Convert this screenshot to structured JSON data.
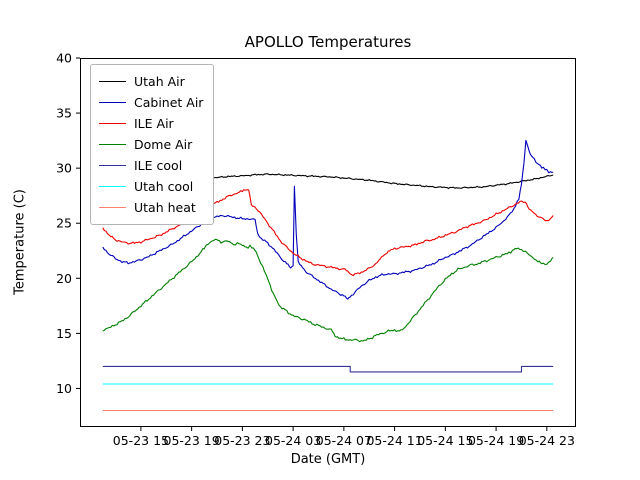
{
  "figure": {
    "title": "APOLLO Temperatures",
    "xlabel": "Date (GMT)",
    "ylabel": "Temperature (C)"
  },
  "chart_data": {
    "type": "line",
    "title": "APOLLO Temperatures",
    "xlabel": "Date (GMT)",
    "ylabel": "Temperature (C)",
    "grid": false,
    "legend_position": "upper-left",
    "x_unit": "hours since 05-23 12:00 GMT",
    "xlim": [
      -1.8,
      37.3
    ],
    "ylim": [
      6.5,
      40
    ],
    "yticks": [
      10,
      15,
      20,
      25,
      30,
      35,
      40
    ],
    "xticks": [
      {
        "value": 3,
        "label": "05-23 15"
      },
      {
        "value": 7,
        "label": "05-23 19"
      },
      {
        "value": 11,
        "label": "05-23 23"
      },
      {
        "value": 15,
        "label": "05-24 03"
      },
      {
        "value": 19,
        "label": "05-24 07"
      },
      {
        "value": 23,
        "label": "05-24 11"
      },
      {
        "value": 27,
        "label": "05-24 15"
      },
      {
        "value": 31,
        "label": "05-24 19"
      },
      {
        "value": 35,
        "label": "05-24 23"
      }
    ],
    "series": [
      {
        "name": "Utah Air",
        "color": "#000000",
        "noise": 0.06,
        "points": [
          [
            0,
            34.8
          ],
          [
            0.3,
            33.6
          ],
          [
            0.6,
            32.4
          ],
          [
            1,
            31.3
          ],
          [
            1.5,
            30.3
          ],
          [
            2,
            29.8
          ],
          [
            2.5,
            29.4
          ],
          [
            3,
            29.2
          ],
          [
            3.5,
            29.05
          ],
          [
            4,
            28.95
          ],
          [
            5,
            28.9
          ],
          [
            6,
            28.95
          ],
          [
            7,
            29.0
          ],
          [
            8,
            29.1
          ],
          [
            9,
            29.15
          ],
          [
            10,
            29.25
          ],
          [
            11,
            29.3
          ],
          [
            12,
            29.4
          ],
          [
            13,
            29.45
          ],
          [
            14,
            29.4
          ],
          [
            15,
            29.35
          ],
          [
            16,
            29.3
          ],
          [
            17,
            29.25
          ],
          [
            18,
            29.2
          ],
          [
            19,
            29.1
          ],
          [
            20,
            29.0
          ],
          [
            21,
            28.9
          ],
          [
            22,
            28.75
          ],
          [
            23,
            28.6
          ],
          [
            24,
            28.5
          ],
          [
            25,
            28.4
          ],
          [
            26,
            28.3
          ],
          [
            27,
            28.25
          ],
          [
            28,
            28.2
          ],
          [
            29,
            28.25
          ],
          [
            30,
            28.3
          ],
          [
            31,
            28.45
          ],
          [
            32,
            28.6
          ],
          [
            33,
            28.8
          ],
          [
            34,
            29.0
          ],
          [
            35,
            29.25
          ],
          [
            35.5,
            29.4
          ]
        ]
      },
      {
        "name": "Cabinet Air",
        "color": "#0000bb",
        "noise": 0.09,
        "points": [
          [
            0,
            22.8
          ],
          [
            0.5,
            22.2
          ],
          [
            1,
            21.8
          ],
          [
            1.5,
            21.5
          ],
          [
            2,
            21.4
          ],
          [
            2.5,
            21.5
          ],
          [
            3,
            21.7
          ],
          [
            3.5,
            21.9
          ],
          [
            4,
            22.2
          ],
          [
            4.5,
            22.5
          ],
          [
            5,
            22.8
          ],
          [
            5.5,
            23.1
          ],
          [
            6,
            23.5
          ],
          [
            6.5,
            23.9
          ],
          [
            7,
            24.3
          ],
          [
            7.5,
            24.7
          ],
          [
            8,
            25.1
          ],
          [
            8.5,
            25.4
          ],
          [
            9,
            25.6
          ],
          [
            9.5,
            25.7
          ],
          [
            10,
            25.6
          ],
          [
            10.5,
            25.5
          ],
          [
            11,
            25.4
          ],
          [
            11.5,
            25.4
          ],
          [
            12,
            25.3
          ],
          [
            12.2,
            24.0
          ],
          [
            12.5,
            23.6
          ],
          [
            13,
            23.2
          ],
          [
            13.5,
            22.6
          ],
          [
            14,
            21.9
          ],
          [
            14.5,
            21.3
          ],
          [
            14.8,
            21.0
          ],
          [
            15,
            21.2
          ],
          [
            15.1,
            28.3
          ],
          [
            15.25,
            24.0
          ],
          [
            15.4,
            21.5
          ],
          [
            16,
            20.6
          ],
          [
            16.5,
            20.2
          ],
          [
            17,
            19.8
          ],
          [
            17.5,
            19.4
          ],
          [
            18,
            19.0
          ],
          [
            18.5,
            18.7
          ],
          [
            19,
            18.4
          ],
          [
            19.3,
            18.2
          ],
          [
            19.6,
            18.4
          ],
          [
            20,
            18.9
          ],
          [
            20.5,
            19.4
          ],
          [
            21,
            19.8
          ],
          [
            21.5,
            20.1
          ],
          [
            22,
            20.3
          ],
          [
            22.5,
            20.4
          ],
          [
            23,
            20.4
          ],
          [
            23.5,
            20.5
          ],
          [
            24,
            20.6
          ],
          [
            24.5,
            20.7
          ],
          [
            25,
            20.9
          ],
          [
            25.5,
            21.1
          ],
          [
            26,
            21.3
          ],
          [
            26.5,
            21.6
          ],
          [
            27,
            21.9
          ],
          [
            27.5,
            22.1
          ],
          [
            28,
            22.4
          ],
          [
            28.5,
            22.7
          ],
          [
            29,
            23.0
          ],
          [
            29.5,
            23.4
          ],
          [
            30,
            23.8
          ],
          [
            30.5,
            24.2
          ],
          [
            31,
            24.6
          ],
          [
            31.5,
            25.1
          ],
          [
            32,
            25.7
          ],
          [
            32.4,
            26.3
          ],
          [
            32.8,
            27.2
          ],
          [
            33,
            28.5
          ],
          [
            33.2,
            30.5
          ],
          [
            33.35,
            32.5
          ],
          [
            33.5,
            32.0
          ],
          [
            33.7,
            31.3
          ],
          [
            34,
            30.8
          ],
          [
            34.3,
            30.4
          ],
          [
            34.6,
            30.1
          ],
          [
            35,
            29.8
          ],
          [
            35.3,
            29.6
          ],
          [
            35.5,
            29.6
          ]
        ]
      },
      {
        "name": "ILE Air",
        "color": "#ee0000",
        "noise": 0.09,
        "points": [
          [
            0,
            24.6
          ],
          [
            0.5,
            23.9
          ],
          [
            1,
            23.5
          ],
          [
            1.5,
            23.3
          ],
          [
            2,
            23.2
          ],
          [
            2.5,
            23.2
          ],
          [
            3,
            23.3
          ],
          [
            3.5,
            23.5
          ],
          [
            4,
            23.7
          ],
          [
            4.5,
            23.9
          ],
          [
            5,
            24.2
          ],
          [
            5.5,
            24.5
          ],
          [
            6,
            24.8
          ],
          [
            6.5,
            25.1
          ],
          [
            7,
            25.5
          ],
          [
            7.5,
            25.9
          ],
          [
            8,
            26.3
          ],
          [
            8.5,
            26.6
          ],
          [
            9,
            26.9
          ],
          [
            9.5,
            27.2
          ],
          [
            10,
            27.5
          ],
          [
            10.5,
            27.7
          ],
          [
            11,
            27.9
          ],
          [
            11.3,
            28.0
          ],
          [
            11.5,
            28.05
          ],
          [
            11.7,
            26.7
          ],
          [
            12,
            26.5
          ],
          [
            12.5,
            25.8
          ],
          [
            13,
            25.0
          ],
          [
            13.5,
            24.2
          ],
          [
            14,
            23.4
          ],
          [
            14.5,
            22.8
          ],
          [
            15,
            22.3
          ],
          [
            15.5,
            21.9
          ],
          [
            16,
            21.6
          ],
          [
            16.5,
            21.3
          ],
          [
            17,
            21.2
          ],
          [
            17.5,
            21.1
          ],
          [
            18,
            21.0
          ],
          [
            18.5,
            20.9
          ],
          [
            19,
            20.8
          ],
          [
            19.3,
            20.7
          ],
          [
            19.6,
            20.3
          ],
          [
            20,
            20.4
          ],
          [
            20.5,
            20.6
          ],
          [
            21,
            20.9
          ],
          [
            21.5,
            21.3
          ],
          [
            22,
            21.9
          ],
          [
            22.3,
            22.2
          ],
          [
            22.6,
            22.5
          ],
          [
            23,
            22.7
          ],
          [
            23.5,
            22.8
          ],
          [
            24,
            22.9
          ],
          [
            24.5,
            23.0
          ],
          [
            25,
            23.2
          ],
          [
            25.5,
            23.4
          ],
          [
            26,
            23.5
          ],
          [
            26.5,
            23.7
          ],
          [
            27,
            23.9
          ],
          [
            27.5,
            24.1
          ],
          [
            28,
            24.3
          ],
          [
            28.5,
            24.6
          ],
          [
            29,
            24.8
          ],
          [
            29.5,
            25.0
          ],
          [
            30,
            25.2
          ],
          [
            30.5,
            25.5
          ],
          [
            31,
            25.8
          ],
          [
            31.5,
            26.1
          ],
          [
            32,
            26.4
          ],
          [
            32.5,
            26.7
          ],
          [
            33,
            27.0
          ],
          [
            33.3,
            26.9
          ],
          [
            33.6,
            26.3
          ],
          [
            34,
            25.9
          ],
          [
            34.5,
            25.5
          ],
          [
            35,
            25.2
          ],
          [
            35.3,
            25.4
          ],
          [
            35.5,
            25.6
          ]
        ]
      },
      {
        "name": "Dome Air",
        "color": "#008000",
        "noise": 0.1,
        "points": [
          [
            0,
            15.3
          ],
          [
            0.5,
            15.5
          ],
          [
            1,
            15.8
          ],
          [
            1.5,
            16.1
          ],
          [
            2,
            16.5
          ],
          [
            2.5,
            17.0
          ],
          [
            3,
            17.5
          ],
          [
            3.5,
            18.0
          ],
          [
            4,
            18.5
          ],
          [
            4.5,
            19.0
          ],
          [
            5,
            19.5
          ],
          [
            5.5,
            20.0
          ],
          [
            6,
            20.5
          ],
          [
            6.5,
            21.0
          ],
          [
            7,
            21.5
          ],
          [
            7.5,
            22.1
          ],
          [
            8,
            22.7
          ],
          [
            8.3,
            23.1
          ],
          [
            8.6,
            23.4
          ],
          [
            9,
            23.5
          ],
          [
            9.3,
            23.2
          ],
          [
            9.6,
            23.4
          ],
          [
            10,
            23.3
          ],
          [
            10.3,
            23.0
          ],
          [
            10.6,
            23.2
          ],
          [
            11,
            23.0
          ],
          [
            11.3,
            22.8
          ],
          [
            11.6,
            22.9
          ],
          [
            12,
            22.6
          ],
          [
            12.3,
            21.8
          ],
          [
            12.6,
            21.0
          ],
          [
            13,
            20.0
          ],
          [
            13.3,
            19.0
          ],
          [
            13.6,
            18.2
          ],
          [
            14,
            17.4
          ],
          [
            14.5,
            17.0
          ],
          [
            15,
            16.6
          ],
          [
            15.5,
            16.4
          ],
          [
            16,
            16.2
          ],
          [
            16.5,
            15.9
          ],
          [
            17,
            15.7
          ],
          [
            17.5,
            15.5
          ],
          [
            18,
            15.3
          ],
          [
            18.3,
            14.8
          ],
          [
            18.6,
            14.6
          ],
          [
            19,
            14.5
          ],
          [
            19.5,
            14.4
          ],
          [
            20,
            14.4
          ],
          [
            20.5,
            14.3
          ],
          [
            21,
            14.5
          ],
          [
            21.5,
            14.8
          ],
          [
            22,
            15.0
          ],
          [
            22.5,
            15.2
          ],
          [
            23,
            15.3
          ],
          [
            23.5,
            15.2
          ],
          [
            24,
            15.8
          ],
          [
            24.5,
            16.5
          ],
          [
            25,
            17.2
          ],
          [
            25.5,
            17.9
          ],
          [
            26,
            18.6
          ],
          [
            26.5,
            19.3
          ],
          [
            27,
            19.9
          ],
          [
            27.5,
            20.4
          ],
          [
            28,
            20.8
          ],
          [
            28.5,
            21.0
          ],
          [
            29,
            21.2
          ],
          [
            29.5,
            21.3
          ],
          [
            30,
            21.5
          ],
          [
            30.5,
            21.7
          ],
          [
            31,
            21.9
          ],
          [
            31.5,
            22.1
          ],
          [
            32,
            22.3
          ],
          [
            32.3,
            22.5
          ],
          [
            32.6,
            22.7
          ],
          [
            33,
            22.6
          ],
          [
            33.3,
            22.4
          ],
          [
            33.6,
            22.1
          ],
          [
            34,
            21.8
          ],
          [
            34.3,
            21.5
          ],
          [
            34.6,
            21.3
          ],
          [
            35,
            21.3
          ],
          [
            35.3,
            21.6
          ],
          [
            35.5,
            21.8
          ]
        ]
      },
      {
        "name": "ILE cool",
        "color": "#333399",
        "noise": 0,
        "points": [
          [
            0,
            12
          ],
          [
            19.5,
            12
          ],
          [
            19.5,
            11.5
          ],
          [
            33,
            11.5
          ],
          [
            33,
            12
          ],
          [
            35.5,
            12
          ]
        ]
      },
      {
        "name": "Utah cool",
        "color": "#00ffff",
        "noise": 0,
        "points": [
          [
            0,
            10.4
          ],
          [
            35.5,
            10.4
          ]
        ]
      },
      {
        "name": "Utah heat",
        "color": "#fa8072",
        "noise": 0,
        "points": [
          [
            0,
            8
          ],
          [
            35.5,
            8
          ]
        ]
      }
    ]
  }
}
